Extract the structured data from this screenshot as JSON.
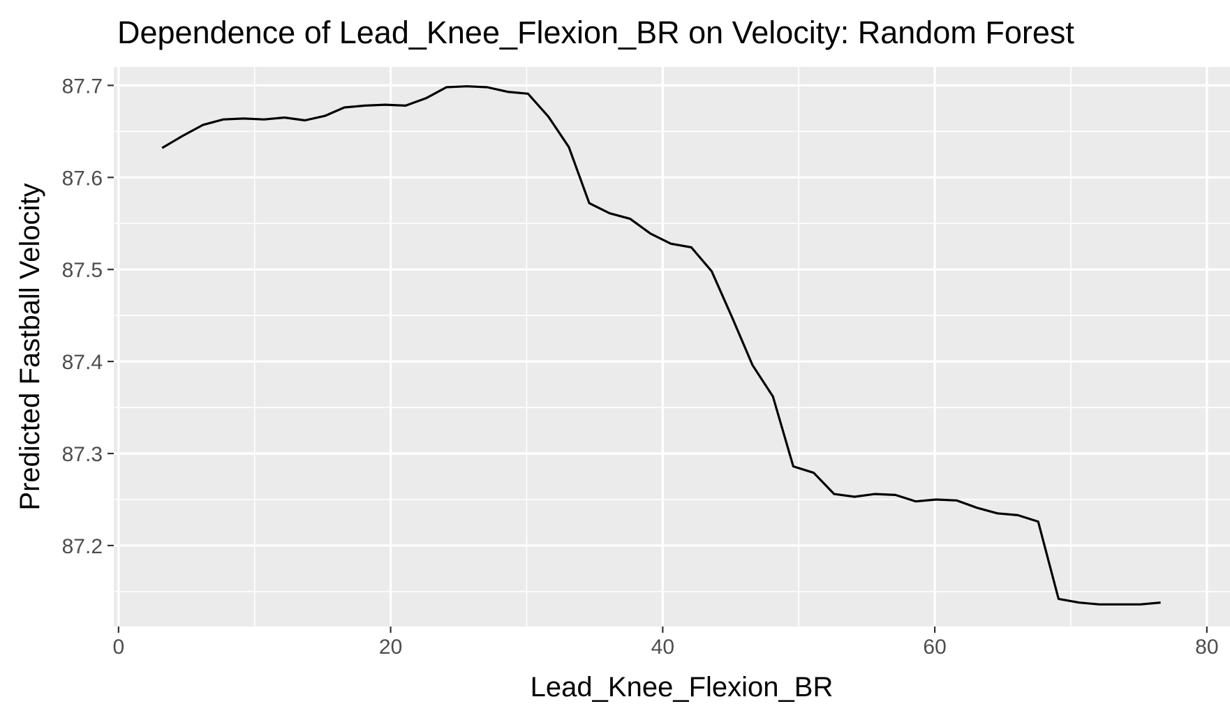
{
  "chart_data": {
    "type": "line",
    "title": "Dependence of Lead_Knee_Flexion_BR on Velocity: Random Forest",
    "xlabel": "Lead_Knee_Flexion_BR",
    "ylabel": "Predicted Fastball Velocity",
    "xlim": [
      0,
      80
    ],
    "ylim": [
      87.14,
      87.7
    ],
    "x_ticks": [
      0,
      20,
      40,
      60,
      80
    ],
    "x_tick_labels": [
      "0",
      "20",
      "40",
      "60",
      "80"
    ],
    "y_ticks": [
      87.2,
      87.3,
      87.4,
      87.5,
      87.6,
      87.7
    ],
    "y_tick_labels": [
      "87.2",
      "87.3",
      "87.4",
      "87.5",
      "87.6",
      "87.7"
    ],
    "grid": true,
    "background": "#ebebeb",
    "line_color": "#000000",
    "series": [
      {
        "x": [
          3.2,
          4.7,
          6.2,
          7.7,
          9.2,
          10.7,
          12.2,
          13.7,
          15.2,
          16.6,
          18.1,
          19.6,
          21.1,
          22.6,
          24.1,
          25.6,
          27.1,
          28.6,
          30.1,
          31.6,
          33.1,
          34.6,
          36.1,
          37.6,
          39.1,
          40.6,
          42.1,
          43.6,
          45.1,
          46.6,
          48.1,
          49.6,
          51.1,
          52.6,
          54.1,
          55.6,
          57.1,
          58.6,
          60.1,
          61.6,
          63.1,
          64.6,
          66.1,
          67.6,
          69.1,
          70.6,
          72.1,
          73.6,
          75.1,
          76.6
        ],
        "y": [
          87.632,
          87.645,
          87.657,
          87.663,
          87.664,
          87.663,
          87.665,
          87.662,
          87.667,
          87.676,
          87.678,
          87.679,
          87.678,
          87.686,
          87.698,
          87.699,
          87.698,
          87.693,
          87.691,
          87.666,
          87.633,
          87.572,
          87.561,
          87.555,
          87.539,
          87.528,
          87.524,
          87.498,
          87.448,
          87.396,
          87.362,
          87.286,
          87.279,
          87.256,
          87.253,
          87.256,
          87.255,
          87.248,
          87.25,
          87.249,
          87.241,
          87.235,
          87.233,
          87.226,
          87.142,
          87.138,
          87.136,
          87.136,
          87.136,
          87.138
        ]
      }
    ]
  }
}
